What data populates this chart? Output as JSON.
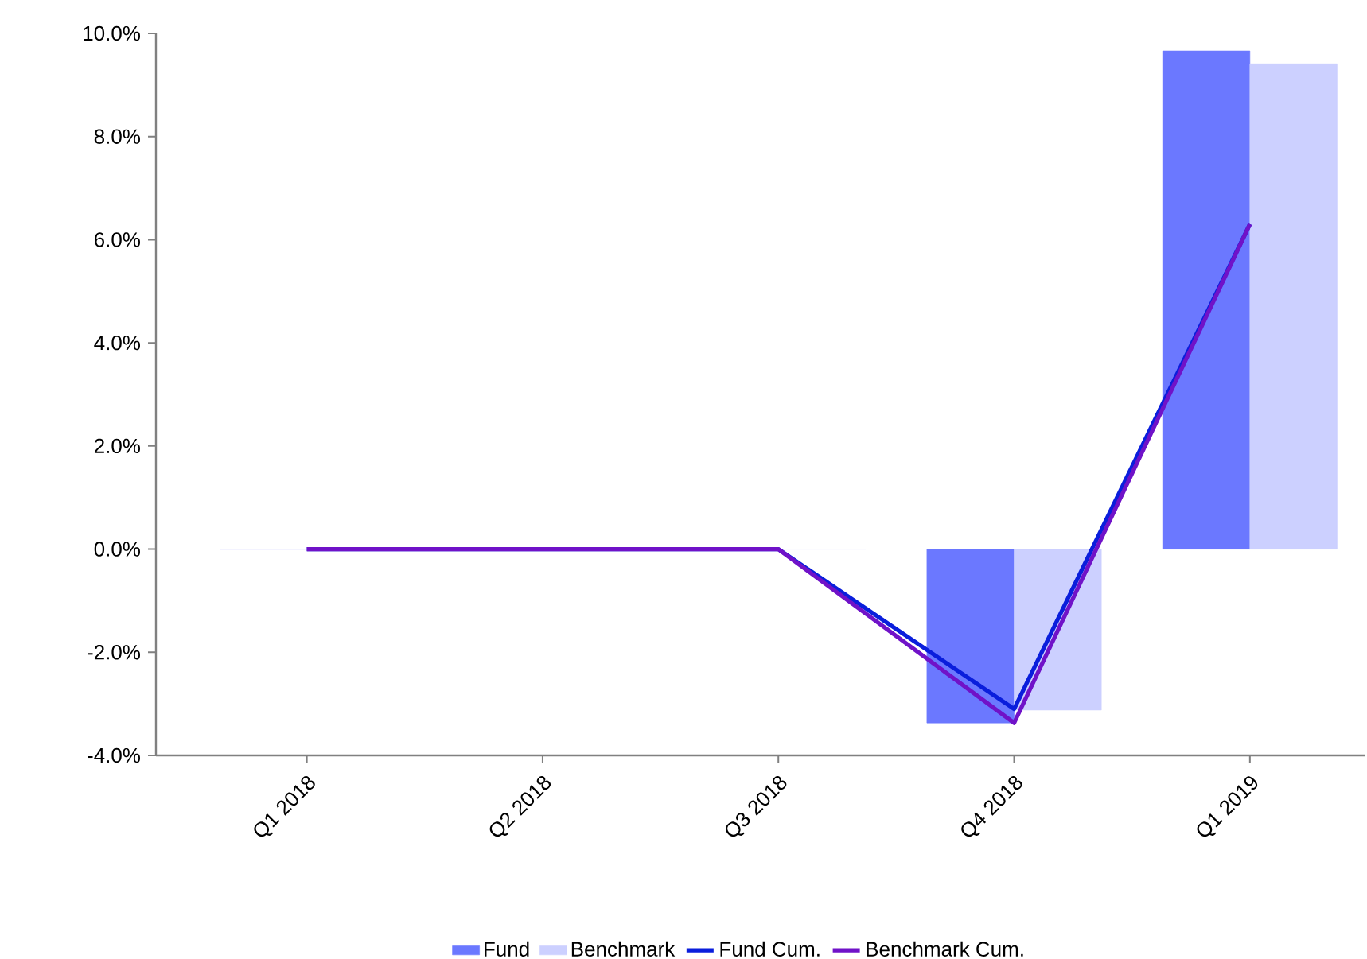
{
  "chart_data": {
    "type": "bar",
    "categories": [
      "Q1 2018",
      "Q2 2018",
      "Q3 2018",
      "Q4 2018",
      "Q1 2019"
    ],
    "series": [
      {
        "name": "Fund",
        "color": "#6b78ff",
        "values": [
          0,
          0,
          0,
          -3.37,
          9.66
        ]
      },
      {
        "name": "Benchmark",
        "color": "#ccd0ff",
        "values": [
          0,
          0,
          0,
          -3.12,
          9.41
        ]
      },
      {
        "name": "Fund Cum.",
        "type": "line",
        "color": "#0a1edc",
        "values": [
          0,
          0,
          0,
          -3.1,
          6.3
        ]
      },
      {
        "name": "Benchmark Cum.",
        "type": "line",
        "color": "#7012c8",
        "values": [
          0,
          0,
          0,
          -3.37,
          6.3
        ]
      }
    ],
    "ylim": [
      -4,
      10
    ],
    "yticks": [
      {
        "value": -4,
        "label": "-4.0%"
      },
      {
        "value": -2,
        "label": "-2.0%"
      },
      {
        "value": 0,
        "label": "0.0%"
      },
      {
        "value": 2,
        "label": "2.0%"
      },
      {
        "value": 4,
        "label": "4.0%"
      },
      {
        "value": 6,
        "label": "6.0%"
      },
      {
        "value": 8,
        "label": "8.0%"
      },
      {
        "value": 10,
        "label": "10.0%"
      }
    ],
    "legend": "bottom",
    "marker": "none"
  }
}
